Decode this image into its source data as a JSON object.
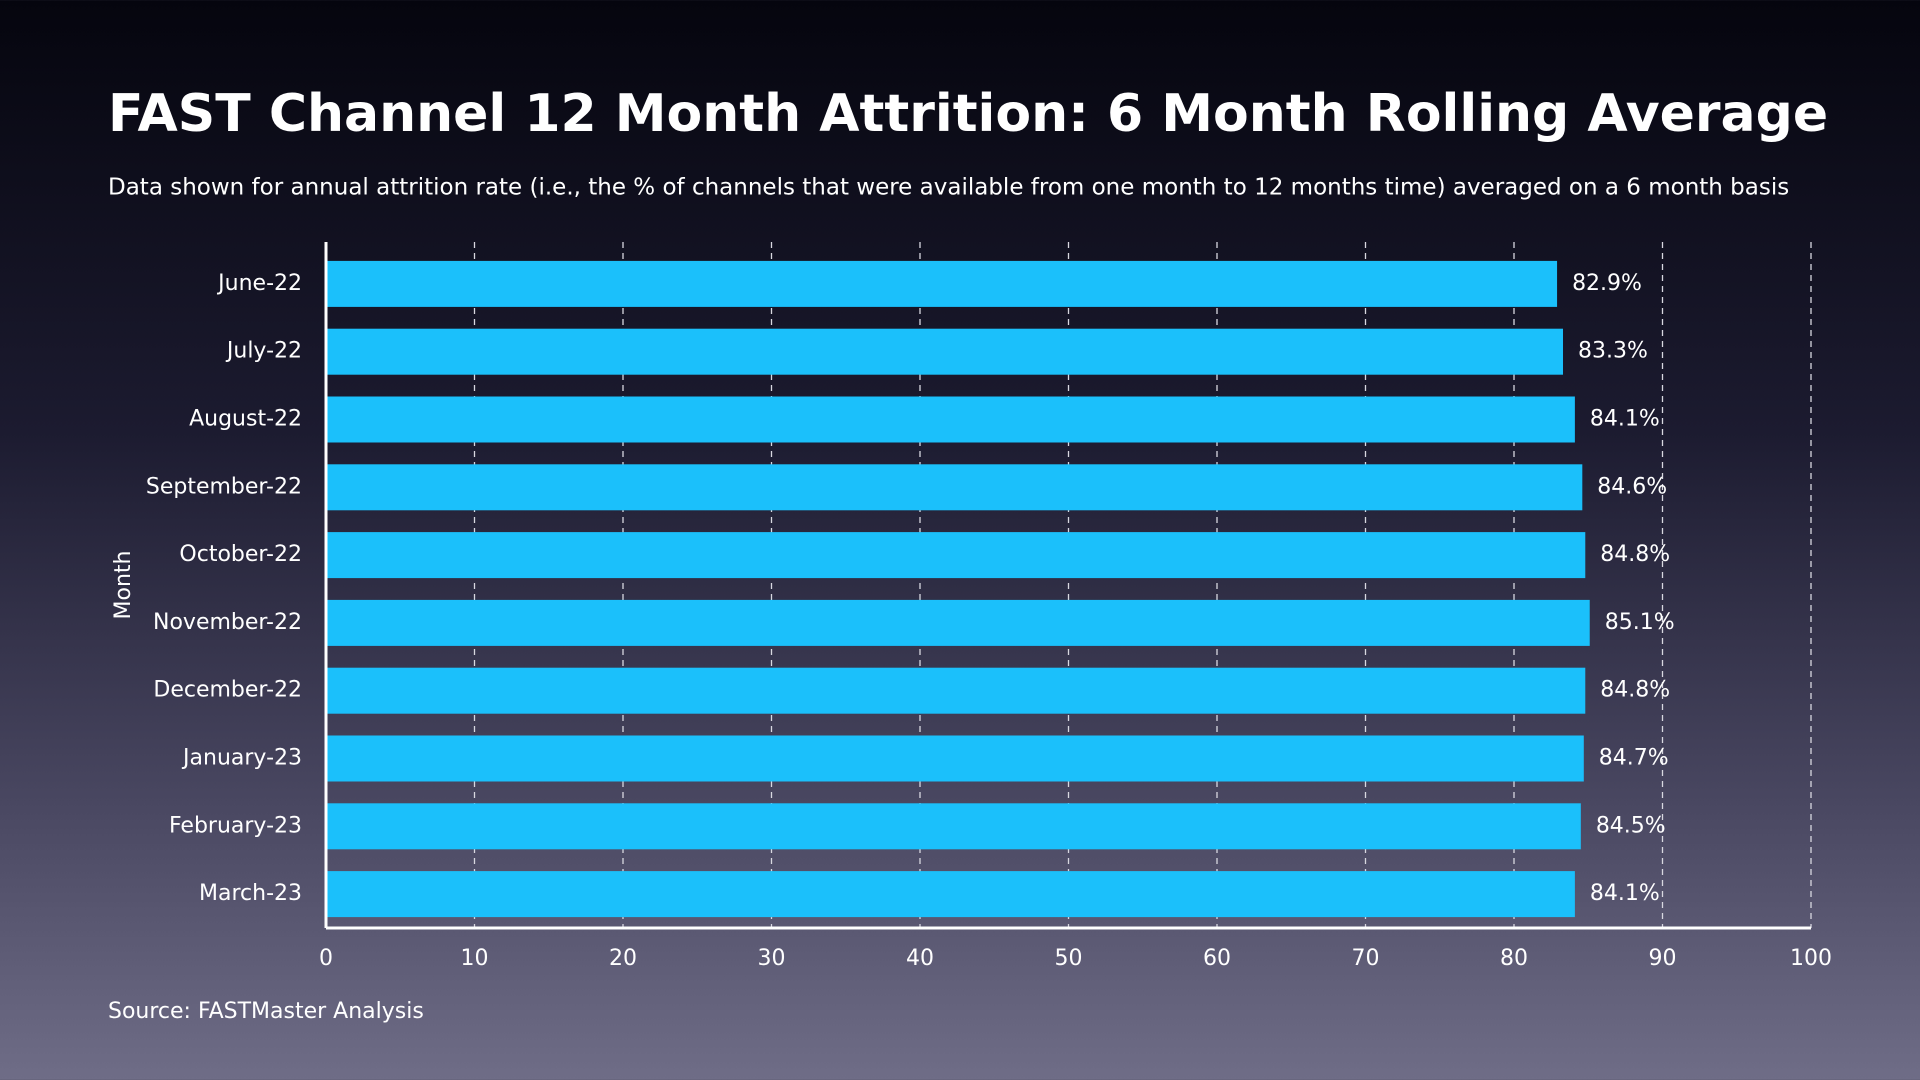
{
  "chart_data": {
    "type": "bar",
    "orientation": "horizontal",
    "title": "FAST Channel 12 Month Attrition: 6 Month Rolling Average",
    "subtitle": "Data shown for annual attrition rate (i.e., the % of channels that were available from one month to 12 months time) averaged on a 6 month basis",
    "source": "Source: FASTMaster Analysis",
    "y_label": "Month",
    "categories": [
      "June-22",
      "July-22",
      "August-22",
      "September-22",
      "October-22",
      "November-22",
      "December-22",
      "January-23",
      "February-23",
      "March-23"
    ],
    "values": [
      82.9,
      83.3,
      84.1,
      84.6,
      84.8,
      85.1,
      84.8,
      84.7,
      84.5,
      84.1
    ],
    "value_labels": [
      "82.9%",
      "83.3%",
      "84.1%",
      "84.6%",
      "84.8%",
      "85.1%",
      "84.8%",
      "84.7%",
      "84.5%",
      "84.1%"
    ],
    "color": "#1bc0fb",
    "xlim": [
      0,
      100
    ],
    "xticks": [
      0,
      10,
      20,
      30,
      40,
      50,
      60,
      70,
      80,
      90,
      100
    ],
    "grid": true
  }
}
